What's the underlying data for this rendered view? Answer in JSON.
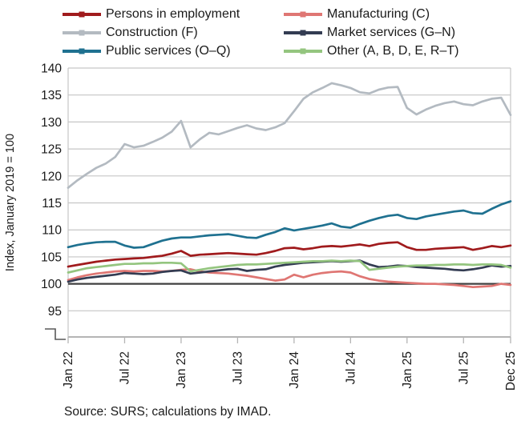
{
  "y_axis_title": "Index, January 2019 = 100",
  "source": "Source: SURS; calculations by IMAD.",
  "legend": {
    "items": [
      {
        "label": "Persons in employment",
        "series_index": 0
      },
      {
        "label": "Manufacturing (C)",
        "series_index": 1
      },
      {
        "label": "Construction (F)",
        "series_index": 2
      },
      {
        "label": "Market services (G–N)",
        "series_index": 3
      },
      {
        "label": "Public services (O–Q)",
        "series_index": 4
      },
      {
        "label": "Other (A, B, D, E, R–T)",
        "series_index": 5
      }
    ]
  },
  "chart_data": {
    "type": "line",
    "title": "",
    "xlabel": "",
    "ylabel": "Index, January 2019 = 100",
    "ylim": [
      95,
      140
    ],
    "y_ticks": [
      140,
      135,
      130,
      125,
      120,
      115,
      110,
      105,
      100,
      95
    ],
    "y_axis_break": true,
    "baseline_value": 100,
    "grid": "horizontal",
    "legend_position": "top",
    "x_unit": "month",
    "x_range": [
      "Jan 2022",
      "Dec 2025"
    ],
    "x_ticks": [
      {
        "label": "Jan 22",
        "month_index": 0
      },
      {
        "label": "Jul 22",
        "month_index": 6
      },
      {
        "label": "Jan 23",
        "month_index": 12
      },
      {
        "label": "Jul 23",
        "month_index": 18
      },
      {
        "label": "Jan 24",
        "month_index": 24
      },
      {
        "label": "Jul 24",
        "month_index": 30
      },
      {
        "label": "Jan 25",
        "month_index": 36
      },
      {
        "label": "Jul 25",
        "month_index": 42
      },
      {
        "label": "Dec 25",
        "month_index": 47
      }
    ],
    "series": [
      {
        "name": "Persons in employment",
        "color": "#a01b1d",
        "values": [
          103.2,
          103.5,
          103.8,
          104.1,
          104.3,
          104.5,
          104.6,
          104.7,
          104.8,
          105.0,
          105.2,
          105.6,
          106.1,
          105.2,
          105.4,
          105.5,
          105.6,
          105.7,
          105.6,
          105.5,
          105.4,
          105.7,
          106.1,
          106.6,
          106.7,
          106.4,
          106.6,
          106.9,
          107.0,
          106.9,
          107.1,
          107.3,
          107.0,
          107.4,
          107.6,
          107.7,
          106.8,
          106.3,
          106.3,
          106.5,
          106.6,
          106.7,
          106.8,
          106.3,
          106.6,
          107.0,
          106.8,
          107.1
        ]
      },
      {
        "name": "Manufacturing (C)",
        "color": "#df7673",
        "values": [
          100.7,
          101.2,
          101.6,
          101.9,
          102.1,
          102.3,
          102.4,
          102.3,
          102.4,
          102.4,
          102.3,
          102.4,
          102.6,
          102.7,
          102.3,
          102.1,
          102.0,
          101.9,
          101.7,
          101.5,
          101.2,
          100.9,
          100.6,
          100.8,
          101.7,
          101.2,
          101.7,
          102.0,
          102.2,
          102.3,
          102.1,
          101.4,
          100.9,
          100.6,
          100.4,
          100.3,
          100.2,
          100.1,
          100.0,
          100.0,
          99.9,
          99.8,
          99.6,
          99.4,
          99.5,
          99.6,
          100.0,
          99.8
        ]
      },
      {
        "name": "Construction (F)",
        "color": "#b3bac1",
        "values": [
          117.8,
          119.2,
          120.4,
          121.5,
          122.3,
          123.5,
          125.9,
          125.3,
          125.6,
          126.3,
          127.1,
          128.2,
          130.2,
          125.3,
          126.8,
          128.0,
          127.7,
          128.3,
          128.9,
          129.4,
          128.8,
          128.5,
          129.0,
          129.8,
          132.0,
          134.3,
          135.5,
          136.3,
          137.2,
          136.8,
          136.3,
          135.5,
          135.3,
          136.0,
          136.4,
          136.5,
          132.6,
          131.4,
          132.3,
          133.0,
          133.5,
          133.8,
          133.3,
          133.1,
          133.8,
          134.3,
          134.5,
          131.3
        ]
      },
      {
        "name": "Market services (G–N)",
        "color": "#333c52",
        "values": [
          100.4,
          100.8,
          101.1,
          101.3,
          101.5,
          101.7,
          102.0,
          101.9,
          101.8,
          101.9,
          102.2,
          102.4,
          102.5,
          101.9,
          102.1,
          102.3,
          102.5,
          102.7,
          102.8,
          102.4,
          102.6,
          102.7,
          103.2,
          103.5,
          103.7,
          103.9,
          104.0,
          104.1,
          104.2,
          104.1,
          104.2,
          104.3,
          103.6,
          103.1,
          103.2,
          103.4,
          103.3,
          103.1,
          103.0,
          102.9,
          102.8,
          102.6,
          102.5,
          102.7,
          103.0,
          103.4,
          103.2,
          103.3
        ]
      },
      {
        "name": "Public services (O–Q)",
        "color": "#1f7190",
        "values": [
          106.8,
          107.2,
          107.5,
          107.7,
          107.8,
          107.8,
          107.1,
          106.7,
          106.8,
          107.4,
          108.0,
          108.4,
          108.6,
          108.6,
          108.8,
          109.0,
          109.1,
          109.2,
          108.9,
          108.6,
          108.5,
          109.1,
          109.6,
          110.3,
          109.9,
          110.2,
          110.5,
          110.8,
          111.2,
          110.6,
          110.4,
          111.1,
          111.7,
          112.2,
          112.6,
          112.8,
          112.2,
          112.0,
          112.5,
          112.8,
          113.1,
          113.4,
          113.6,
          113.1,
          113.0,
          113.9,
          114.7,
          115.3
        ]
      },
      {
        "name": "Other (A, B, D, E, R–T)",
        "color": "#94c57f",
        "values": [
          102.1,
          102.5,
          102.9,
          103.1,
          103.3,
          103.5,
          103.7,
          103.7,
          103.8,
          103.8,
          103.9,
          103.9,
          103.8,
          102.3,
          102.6,
          102.9,
          103.1,
          103.3,
          103.5,
          103.6,
          103.6,
          103.7,
          103.8,
          103.9,
          104.0,
          104.1,
          104.2,
          104.2,
          104.3,
          104.2,
          104.3,
          104.2,
          102.6,
          102.8,
          103.0,
          103.2,
          103.3,
          103.4,
          103.4,
          103.5,
          103.5,
          103.6,
          103.6,
          103.5,
          103.6,
          103.6,
          103.5,
          103.0
        ]
      }
    ],
    "style": {
      "gridline_color": "#c6c6c6",
      "axis_color": "#b5b5b5",
      "baseline_color": "#404040",
      "text_color": "#1a1a1a"
    }
  }
}
